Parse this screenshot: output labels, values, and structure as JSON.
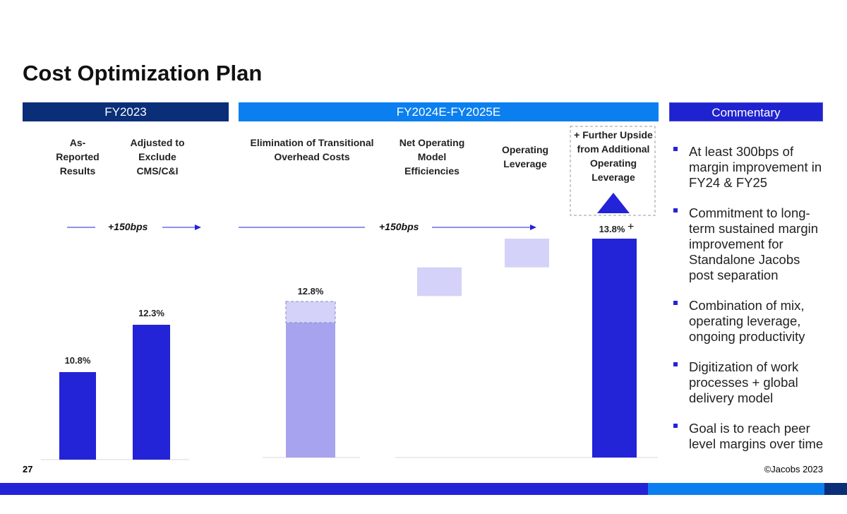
{
  "title": "Cost Optimization Plan",
  "headers": {
    "fy2023": "FY2023",
    "fy2024": "FY2024E-FY2025E",
    "commentary": "Commentary"
  },
  "column_labels": {
    "as_reported": "As-\nReported\nResults",
    "adjusted": "Adjusted to\nExclude\nCMS/C&I",
    "elimination": "Elimination of Transitional\nOverhead Costs",
    "net_operating": "Net Operating\nModel\nEfficiencies",
    "operating_leverage": "Operating\nLeverage",
    "further_upside": "+ Further Upside\nfrom Additional\nOperating\nLeverage"
  },
  "bps_labels": {
    "first": "+150bps",
    "second": "+150bps"
  },
  "plus_sign": "+",
  "chart_data": {
    "type": "bar",
    "title": "Cost Optimization Plan",
    "unit": "% margin",
    "ylim": [
      0,
      14.5
    ],
    "categories": [
      "As-Reported Results",
      "Adjusted to Exclude CMS/C&I",
      "Elimination of Transitional Overhead Costs",
      "Net Operating Model Efficiencies",
      "Operating Leverage",
      "Further Upside"
    ],
    "bars": [
      {
        "name": "as_reported",
        "kind": "total",
        "base": 0,
        "value": 10.8,
        "label": "10.8%"
      },
      {
        "name": "adjusted",
        "kind": "total",
        "base": 0,
        "value": 12.3,
        "label": "12.3%"
      },
      {
        "name": "elimination",
        "kind": "stacked",
        "base": 0,
        "value": 12.3,
        "increment": 0.5,
        "label": "12.8%"
      },
      {
        "name": "net_operating",
        "kind": "floating",
        "base": 12.8,
        "value": 13.3,
        "label": ""
      },
      {
        "name": "operating_leverage",
        "kind": "floating",
        "base": 13.3,
        "value": 13.8,
        "label": ""
      },
      {
        "name": "further_upside",
        "kind": "total",
        "base": 0,
        "value": 13.8,
        "label": "13.8%"
      }
    ]
  },
  "commentary": [
    "At least 300bps of margin improvement in FY24 & FY25",
    "Commitment to long-term sustained margin improvement for Standalone Jacobs post separation",
    "Combination of mix, operating leverage, ongoing productivity",
    "Digitization of work processes + global delivery model",
    "Goal is to reach peer level margins over time"
  ],
  "footer": {
    "page_number": "27",
    "copyright": "©Jacobs 2023"
  },
  "colors": {
    "dark_navy": "#0a2e78",
    "bright_blue": "#0b7ff0",
    "bar_blue": "#2323d8",
    "light_bar": "#a7a3ee",
    "pale_bar": "#d4d2f8",
    "commentary_hdr": "#1f22cf"
  }
}
